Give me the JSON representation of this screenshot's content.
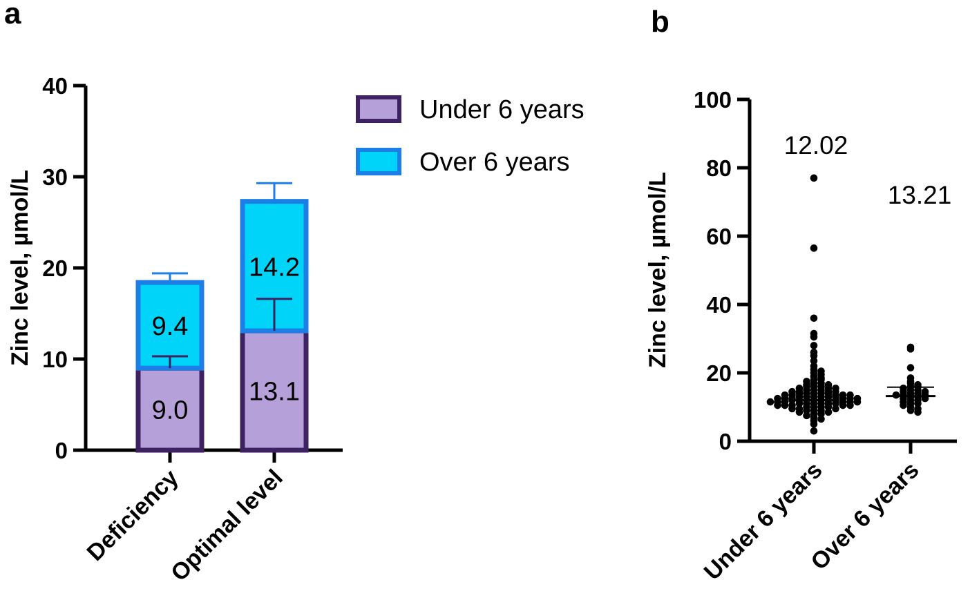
{
  "panels": {
    "a": "a",
    "b": "b"
  },
  "chart_data": [
    {
      "type": "bar",
      "stacked": true,
      "title": "",
      "xlabel": "",
      "ylabel": "Zinc level, µmol/L",
      "ylim": [
        0,
        40
      ],
      "yticks": [
        0,
        10,
        20,
        30,
        40
      ],
      "ytick_labels": [
        "0",
        "10",
        "20",
        "30",
        "40"
      ],
      "categories": [
        "Deficiency",
        "Optimal level"
      ],
      "series": [
        {
          "name": "Under 6 years",
          "values": [
            9.0,
            13.1
          ],
          "errors": [
            1.3,
            3.5
          ],
          "labels": [
            "9.0",
            "13.1"
          ],
          "fill": "#b5a0d9",
          "stroke": "#3e2160"
        },
        {
          "name": "Over 6 years",
          "values": [
            9.4,
            14.2
          ],
          "errors": [
            1.0,
            2.0
          ],
          "labels": [
            "9.4",
            "14.2"
          ],
          "fill": "#00d4f8",
          "stroke": "#1d7ee6"
        }
      ],
      "legend": {
        "position": "right",
        "items": [
          "Under 6 years",
          "Over 6 years"
        ]
      }
    },
    {
      "type": "scatter",
      "title": "",
      "xlabel": "",
      "ylabel": "Zinc level, µmol/L",
      "ylim": [
        0,
        100
      ],
      "yticks": [
        0,
        20,
        40,
        60,
        80,
        100
      ],
      "ytick_labels": [
        "0",
        "20",
        "40",
        "60",
        "80",
        "100"
      ],
      "categories": [
        "Under 6 years",
        "Over 6 years"
      ],
      "medians": [
        12.02,
        13.21
      ],
      "median_labels": [
        "12.02",
        "13.21"
      ],
      "upper_bars": [
        null,
        15.8
      ],
      "points": [
        [
          77.0,
          56.5,
          36.0,
          31.5,
          30.5,
          28.0,
          26.0,
          25.0,
          23.5,
          22.0,
          21.0,
          20.5,
          20.0,
          19.5,
          19.0,
          18.5,
          18.0,
          18.0,
          17.5,
          17.0,
          17.0,
          16.5,
          16.5,
          16.0,
          16.0,
          16.0,
          15.5,
          15.5,
          15.5,
          15.0,
          15.0,
          15.0,
          14.5,
          14.5,
          14.5,
          14.5,
          14.0,
          14.0,
          14.0,
          14.0,
          14.0,
          13.5,
          13.5,
          13.5,
          13.5,
          13.5,
          13.0,
          13.0,
          13.0,
          13.0,
          13.0,
          13.0,
          12.5,
          12.5,
          12.5,
          12.5,
          12.5,
          12.5,
          12.0,
          12.0,
          12.0,
          12.0,
          12.0,
          12.0,
          12.0,
          11.5,
          11.5,
          11.5,
          11.5,
          11.5,
          11.5,
          11.0,
          11.0,
          11.0,
          11.0,
          11.0,
          11.0,
          10.5,
          10.5,
          10.5,
          10.5,
          10.5,
          10.0,
          10.0,
          10.0,
          10.0,
          9.5,
          9.5,
          9.5,
          9.0,
          9.0,
          9.0,
          8.5,
          8.5,
          8.0,
          8.0,
          7.5,
          7.0,
          6.5,
          6.0,
          5.0,
          3.0
        ],
        [
          27.5,
          27.0,
          21.5,
          18.5,
          17.5,
          17.0,
          16.5,
          16.0,
          16.0,
          15.5,
          15.0,
          15.0,
          14.5,
          14.5,
          14.0,
          14.0,
          13.5,
          13.5,
          13.5,
          13.0,
          13.0,
          12.5,
          12.5,
          12.0,
          12.0,
          11.5,
          11.0,
          11.0,
          10.5,
          10.0,
          9.5,
          9.0,
          8.5
        ]
      ]
    }
  ]
}
